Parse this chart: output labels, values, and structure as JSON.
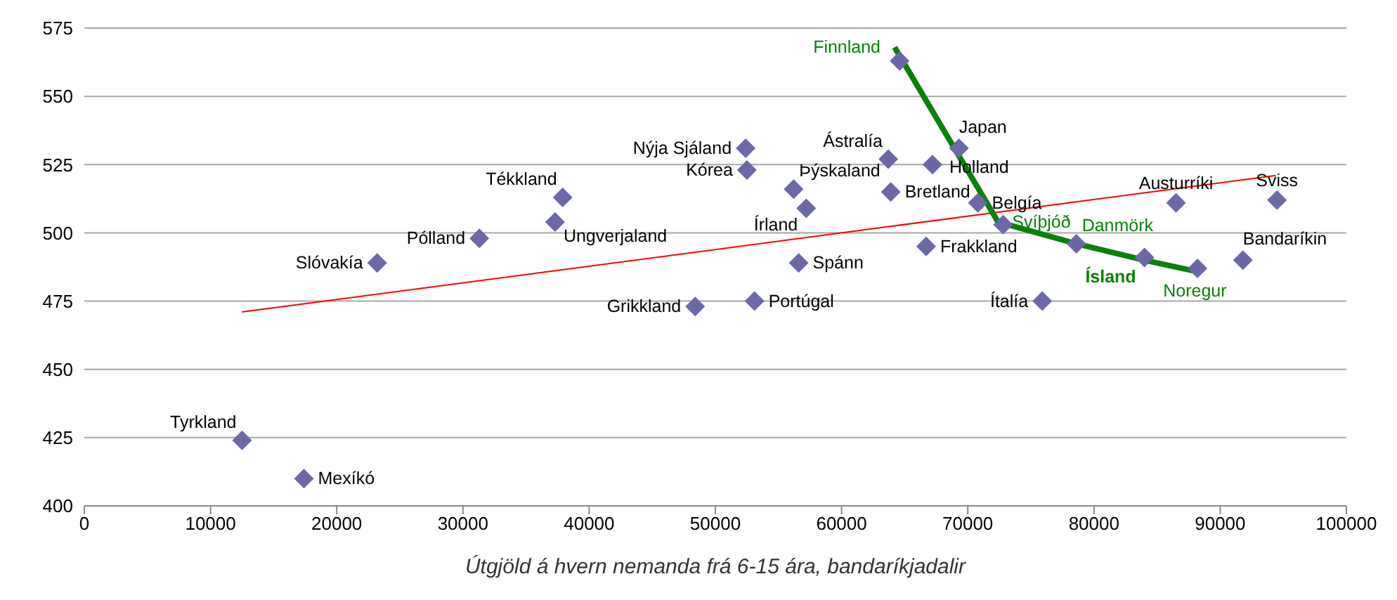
{
  "chart_data": {
    "type": "scatter",
    "xlabel": "Útgjöld á hvern nemanda frá 6-15 ára, bandaríkjadalir",
    "xlim": [
      0,
      100000
    ],
    "xticks": [
      0,
      10000,
      20000,
      30000,
      40000,
      50000,
      60000,
      70000,
      80000,
      90000,
      100000
    ],
    "ylim": [
      400,
      575
    ],
    "yticks": [
      400,
      425,
      450,
      475,
      500,
      525,
      550,
      575
    ],
    "grid": "y",
    "legend": false,
    "series": [
      {
        "color": "#6b67a8",
        "marker": "diamond",
        "x": [
          12500,
          17400,
          23200,
          31300,
          37300,
          37900,
          48400,
          52400,
          52500,
          53100,
          56200,
          56600,
          57200,
          63700,
          63900,
          64600,
          66700,
          67200,
          69300,
          70800,
          72800,
          75900,
          78600,
          84000,
          86500,
          88200,
          91800,
          94500
        ],
        "values": [
          424,
          410,
          489,
          498,
          504,
          513,
          473,
          531,
          523,
          475,
          516,
          489,
          509,
          527,
          515,
          563,
          495,
          525,
          531,
          511,
          503,
          475,
          496,
          491,
          511,
          487,
          490,
          512
        ],
        "value_labels": [
          "Tyrkland",
          "Mexíkó",
          "Slóvakía",
          "Pólland",
          "Ungverjaland",
          "Tékkland",
          "Grikkland",
          "Nýja Sjáland",
          "Kórea",
          "Portúgal",
          "Þýskaland",
          "Spánn",
          "Írland",
          "Ástralía",
          "Bretland",
          null,
          "Frakkland",
          "Holland",
          "Japan",
          "Belgía",
          null,
          "Ítalía",
          null,
          null,
          "Austurríki",
          null,
          "Bandaríkin",
          "Sviss"
        ]
      },
      {
        "type": "line",
        "color": "#ff0000",
        "marker": "none",
        "x": [
          12500,
          94400
        ],
        "values": [
          471,
          521
        ]
      },
      {
        "type": "line",
        "color": "#0a800a",
        "marker": "none",
        "x": [
          64200,
          72400,
          78600,
          84000,
          88000
        ],
        "values": [
          568,
          504,
          496,
          490,
          486
        ],
        "value_labels": [
          "Finnland",
          "Svíþjóð",
          "Danmörk",
          "Ísland",
          "Noregur"
        ]
      }
    ]
  }
}
